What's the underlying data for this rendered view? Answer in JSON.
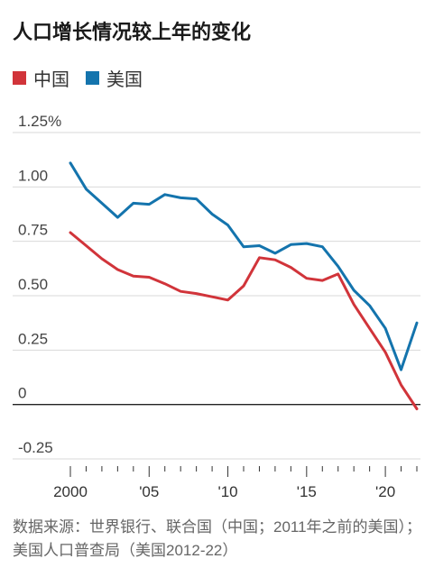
{
  "chart_data": {
    "type": "line",
    "title": "人口增长情况较上年的变化",
    "x": [
      2000,
      2001,
      2002,
      2003,
      2004,
      2005,
      2006,
      2007,
      2008,
      2009,
      2010,
      2011,
      2012,
      2013,
      2014,
      2015,
      2016,
      2017,
      2018,
      2019,
      2020,
      2021,
      2022
    ],
    "series": [
      {
        "name": "中国",
        "color": "#d1343a",
        "values": [
          0.79,
          0.73,
          0.67,
          0.62,
          0.59,
          0.585,
          0.555,
          0.52,
          0.51,
          0.495,
          0.48,
          0.545,
          0.675,
          0.665,
          0.63,
          0.58,
          0.57,
          0.6,
          0.46,
          0.35,
          0.24,
          0.09,
          -0.02
        ]
      },
      {
        "name": "美国",
        "color": "#1474ad",
        "values": [
          1.11,
          0.99,
          0.925,
          0.86,
          0.925,
          0.92,
          0.965,
          0.95,
          0.945,
          0.875,
          0.825,
          0.725,
          0.73,
          0.695,
          0.735,
          0.74,
          0.725,
          0.635,
          0.525,
          0.455,
          0.35,
          0.16,
          0.375
        ]
      }
    ],
    "ylim": [
      -0.25,
      1.25
    ],
    "yticks": [
      -0.25,
      0,
      0.25,
      0.5,
      0.75,
      1.0,
      1.25
    ],
    "ytick_labels": [
      "-0.25",
      "0",
      "0.25",
      "0.50",
      "0.75",
      "1.00",
      "1.25%"
    ],
    "xticks": [
      2000,
      2005,
      2010,
      2015,
      2020
    ],
    "xtick_labels": [
      "2000",
      "'05",
      "'10",
      "'15",
      "'20"
    ],
    "xlim": [
      2000,
      2022
    ],
    "grid": true,
    "legend": "top-left",
    "source": "数据来源：世界银行、联合国（中国；2011年之前的美国）；美国人口普查局（美国2012-22）"
  },
  "legend_items": [
    {
      "label": "中国",
      "color": "#d1343a"
    },
    {
      "label": "美国",
      "color": "#1474ad"
    }
  ]
}
